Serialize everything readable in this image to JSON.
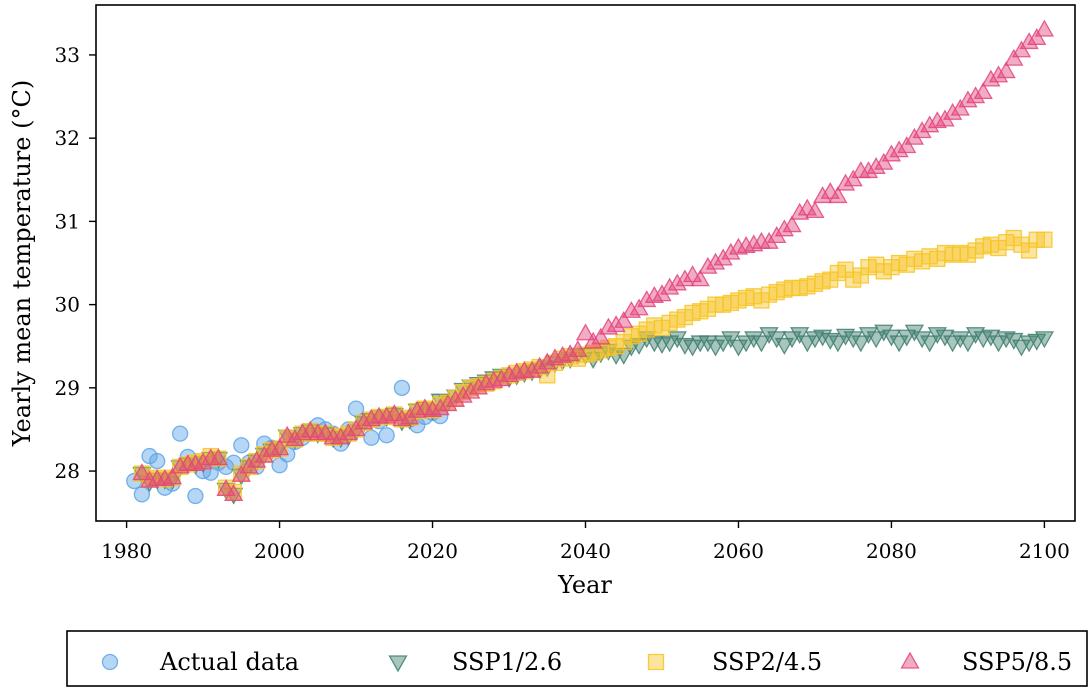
{
  "chart_data": {
    "type": "scatter",
    "title": "",
    "xlabel": "Year",
    "ylabel": "Yearly mean temperature (°C)",
    "xlim": [
      1976,
      2104
    ],
    "ylim": [
      27.4,
      33.6
    ],
    "xticks": [
      1980,
      2000,
      2020,
      2040,
      2060,
      2080,
      2100
    ],
    "yticks": [
      28,
      29,
      30,
      31,
      32,
      33
    ],
    "grid": false,
    "legend_position": "bottom",
    "series": [
      {
        "name": "Actual data",
        "marker": "circle",
        "color": "#5DA5E8",
        "x": [
          1981,
          1982,
          1983,
          1984,
          1985,
          1986,
          1987,
          1988,
          1989,
          1990,
          1991,
          1992,
          1993,
          1994,
          1995,
          1996,
          1997,
          1998,
          1999,
          2000,
          2001,
          2002,
          2003,
          2004,
          2005,
          2006,
          2007,
          2008,
          2009,
          2010,
          2011,
          2012,
          2013,
          2014,
          2015,
          2016,
          2017,
          2018,
          2019,
          2020,
          2021
        ],
        "y": [
          27.88,
          27.72,
          28.18,
          28.12,
          27.8,
          27.85,
          28.45,
          28.17,
          27.7,
          28.0,
          27.98,
          28.1,
          28.05,
          28.1,
          28.31,
          28.1,
          28.05,
          28.33,
          28.28,
          28.07,
          28.2,
          28.35,
          28.4,
          28.45,
          28.55,
          28.5,
          28.45,
          28.33,
          28.5,
          28.75,
          28.6,
          28.4,
          28.6,
          28.43,
          28.68,
          29.0,
          28.62,
          28.55,
          28.65,
          28.7,
          28.66
        ]
      },
      {
        "name": "SSP1/2.6",
        "marker": "triangle-down",
        "color": "#3F7F6E",
        "x": [
          1982,
          1983,
          1984,
          1985,
          1986,
          1987,
          1988,
          1989,
          1990,
          1991,
          1992,
          1993,
          1994,
          1995,
          1996,
          1997,
          1998,
          1999,
          2000,
          2001,
          2002,
          2003,
          2004,
          2005,
          2006,
          2007,
          2008,
          2009,
          2010,
          2011,
          2012,
          2013,
          2014,
          2015,
          2016,
          2017,
          2018,
          2019,
          2020,
          2021,
          2022,
          2023,
          2024,
          2025,
          2026,
          2027,
          2028,
          2029,
          2030,
          2031,
          2032,
          2033,
          2034,
          2035,
          2036,
          2037,
          2038,
          2039,
          2040,
          2041,
          2042,
          2043,
          2044,
          2045,
          2046,
          2047,
          2048,
          2049,
          2050,
          2051,
          2052,
          2053,
          2054,
          2055,
          2056,
          2057,
          2058,
          2059,
          2060,
          2061,
          2062,
          2063,
          2064,
          2065,
          2066,
          2067,
          2068,
          2069,
          2070,
          2071,
          2072,
          2073,
          2074,
          2075,
          2076,
          2077,
          2078,
          2079,
          2080,
          2081,
          2082,
          2083,
          2084,
          2085,
          2086,
          2087,
          2088,
          2089,
          2090,
          2091,
          2092,
          2093,
          2094,
          2095,
          2096,
          2097,
          2098,
          2099,
          2100
        ],
        "y": [
          27.97,
          27.87,
          27.9,
          27.9,
          27.9,
          28.05,
          28.08,
          28.08,
          28.1,
          28.15,
          28.15,
          27.78,
          27.72,
          27.95,
          28.05,
          28.12,
          28.2,
          28.25,
          28.28,
          28.42,
          28.38,
          28.45,
          28.48,
          28.45,
          28.45,
          28.4,
          28.4,
          28.42,
          28.48,
          28.58,
          28.62,
          28.65,
          28.65,
          28.68,
          28.6,
          28.62,
          28.73,
          28.75,
          28.73,
          28.85,
          28.83,
          28.9,
          28.98,
          29.02,
          29.05,
          29.08,
          29.12,
          29.15,
          29.12,
          29.15,
          29.18,
          29.2,
          29.22,
          29.25,
          29.3,
          29.33,
          29.35,
          29.4,
          29.4,
          29.35,
          29.42,
          29.45,
          29.4,
          29.4,
          29.5,
          29.52,
          29.6,
          29.55,
          29.53,
          29.55,
          29.6,
          29.52,
          29.5,
          29.55,
          29.55,
          29.5,
          29.55,
          29.6,
          29.5,
          29.55,
          29.6,
          29.55,
          29.65,
          29.6,
          29.52,
          29.6,
          29.65,
          29.55,
          29.6,
          29.62,
          29.58,
          29.55,
          29.63,
          29.6,
          29.55,
          29.65,
          29.6,
          29.68,
          29.62,
          29.55,
          29.62,
          29.68,
          29.6,
          29.55,
          29.65,
          29.62,
          29.55,
          29.6,
          29.55,
          29.65,
          29.6,
          29.62,
          29.55,
          29.6,
          29.58,
          29.5,
          29.55,
          29.57,
          29.6
        ]
      },
      {
        "name": "SSP2/4.5",
        "marker": "square",
        "color": "#F7C425",
        "x": [
          1982,
          1983,
          1984,
          1985,
          1986,
          1987,
          1988,
          1989,
          1990,
          1991,
          1992,
          1993,
          1994,
          1995,
          1996,
          1997,
          1998,
          1999,
          2000,
          2001,
          2002,
          2003,
          2004,
          2005,
          2006,
          2007,
          2008,
          2009,
          2010,
          2011,
          2012,
          2013,
          2014,
          2015,
          2016,
          2017,
          2018,
          2019,
          2020,
          2021,
          2022,
          2023,
          2024,
          2025,
          2026,
          2027,
          2028,
          2029,
          2030,
          2031,
          2032,
          2033,
          2034,
          2035,
          2036,
          2037,
          2038,
          2039,
          2040,
          2041,
          2042,
          2043,
          2044,
          2045,
          2046,
          2047,
          2048,
          2049,
          2050,
          2051,
          2052,
          2053,
          2054,
          2055,
          2056,
          2057,
          2058,
          2059,
          2060,
          2061,
          2062,
          2063,
          2064,
          2065,
          2066,
          2067,
          2068,
          2069,
          2070,
          2071,
          2072,
          2073,
          2074,
          2075,
          2076,
          2077,
          2078,
          2079,
          2080,
          2081,
          2082,
          2083,
          2084,
          2085,
          2086,
          2087,
          2088,
          2089,
          2090,
          2091,
          2092,
          2093,
          2094,
          2095,
          2096,
          2097,
          2098,
          2099,
          2100
        ],
        "y": [
          27.97,
          27.9,
          27.92,
          27.9,
          27.92,
          28.05,
          28.08,
          28.1,
          28.12,
          28.18,
          28.15,
          27.8,
          27.75,
          27.97,
          28.05,
          28.12,
          28.2,
          28.25,
          28.27,
          28.4,
          28.38,
          28.45,
          28.48,
          28.45,
          28.45,
          28.4,
          28.42,
          28.45,
          28.5,
          28.58,
          28.62,
          28.65,
          28.65,
          28.68,
          28.62,
          28.64,
          28.72,
          28.75,
          28.73,
          28.8,
          28.82,
          28.88,
          28.95,
          29.0,
          29.02,
          29.05,
          29.08,
          29.12,
          29.15,
          29.18,
          29.2,
          29.22,
          29.25,
          29.15,
          29.3,
          29.35,
          29.38,
          29.35,
          29.4,
          29.42,
          29.45,
          29.48,
          29.5,
          29.55,
          29.62,
          29.65,
          29.7,
          29.75,
          29.72,
          29.78,
          29.82,
          29.85,
          29.9,
          29.92,
          29.95,
          30.0,
          30.0,
          30.02,
          30.05,
          30.08,
          30.1,
          30.05,
          30.12,
          30.15,
          30.18,
          30.2,
          30.2,
          30.22,
          30.25,
          30.28,
          30.3,
          30.38,
          30.42,
          30.3,
          30.35,
          30.45,
          30.48,
          30.4,
          30.45,
          30.5,
          30.48,
          30.55,
          30.52,
          30.58,
          30.55,
          30.62,
          30.6,
          30.62,
          30.6,
          30.65,
          30.7,
          30.72,
          30.68,
          30.75,
          30.8,
          30.72,
          30.65,
          30.78,
          30.78
        ]
      },
      {
        "name": "SSP5/8.5",
        "marker": "triangle-up",
        "color": "#E2457D",
        "x": [
          1982,
          1983,
          1984,
          1985,
          1986,
          1987,
          1988,
          1989,
          1990,
          1991,
          1992,
          1993,
          1994,
          1995,
          1996,
          1997,
          1998,
          1999,
          2000,
          2001,
          2002,
          2003,
          2004,
          2005,
          2006,
          2007,
          2008,
          2009,
          2010,
          2011,
          2012,
          2013,
          2014,
          2015,
          2016,
          2017,
          2018,
          2019,
          2020,
          2021,
          2022,
          2023,
          2024,
          2025,
          2026,
          2027,
          2028,
          2029,
          2030,
          2031,
          2032,
          2033,
          2034,
          2035,
          2036,
          2037,
          2038,
          2039,
          2040,
          2041,
          2042,
          2043,
          2044,
          2045,
          2046,
          2047,
          2048,
          2049,
          2050,
          2051,
          2052,
          2053,
          2054,
          2055,
          2056,
          2057,
          2058,
          2059,
          2060,
          2061,
          2062,
          2063,
          2064,
          2065,
          2066,
          2067,
          2068,
          2069,
          2070,
          2071,
          2072,
          2073,
          2074,
          2075,
          2076,
          2077,
          2078,
          2079,
          2080,
          2081,
          2082,
          2083,
          2084,
          2085,
          2086,
          2087,
          2088,
          2089,
          2090,
          2091,
          2092,
          2093,
          2094,
          2095,
          2096,
          2097,
          2098,
          2099,
          2100
        ],
        "y": [
          27.97,
          27.88,
          27.9,
          27.9,
          27.92,
          28.05,
          28.08,
          28.08,
          28.1,
          28.15,
          28.15,
          27.78,
          27.72,
          27.95,
          28.05,
          28.12,
          28.18,
          28.25,
          28.27,
          28.42,
          28.38,
          28.45,
          28.48,
          28.45,
          28.45,
          28.4,
          28.4,
          28.45,
          28.5,
          28.58,
          28.62,
          28.65,
          28.65,
          28.68,
          28.62,
          28.64,
          28.72,
          28.75,
          28.73,
          28.75,
          28.8,
          28.85,
          28.9,
          28.95,
          29.0,
          29.05,
          29.08,
          29.1,
          29.15,
          29.18,
          29.2,
          29.2,
          29.25,
          29.3,
          29.35,
          29.38,
          29.4,
          29.45,
          29.65,
          29.55,
          29.6,
          29.72,
          29.75,
          29.8,
          29.92,
          29.95,
          30.05,
          30.1,
          30.12,
          30.2,
          30.25,
          30.3,
          30.35,
          30.3,
          30.45,
          30.5,
          30.55,
          30.62,
          30.68,
          30.7,
          30.72,
          30.75,
          30.75,
          30.82,
          30.9,
          30.95,
          31.1,
          31.15,
          31.12,
          31.3,
          31.35,
          31.3,
          31.45,
          31.5,
          31.6,
          31.6,
          31.65,
          31.7,
          31.8,
          31.85,
          31.9,
          32.0,
          32.08,
          32.15,
          32.2,
          32.22,
          32.3,
          32.35,
          32.45,
          32.5,
          32.55,
          32.7,
          32.75,
          32.8,
          32.95,
          33.05,
          33.15,
          33.2,
          33.3
        ]
      }
    ]
  }
}
